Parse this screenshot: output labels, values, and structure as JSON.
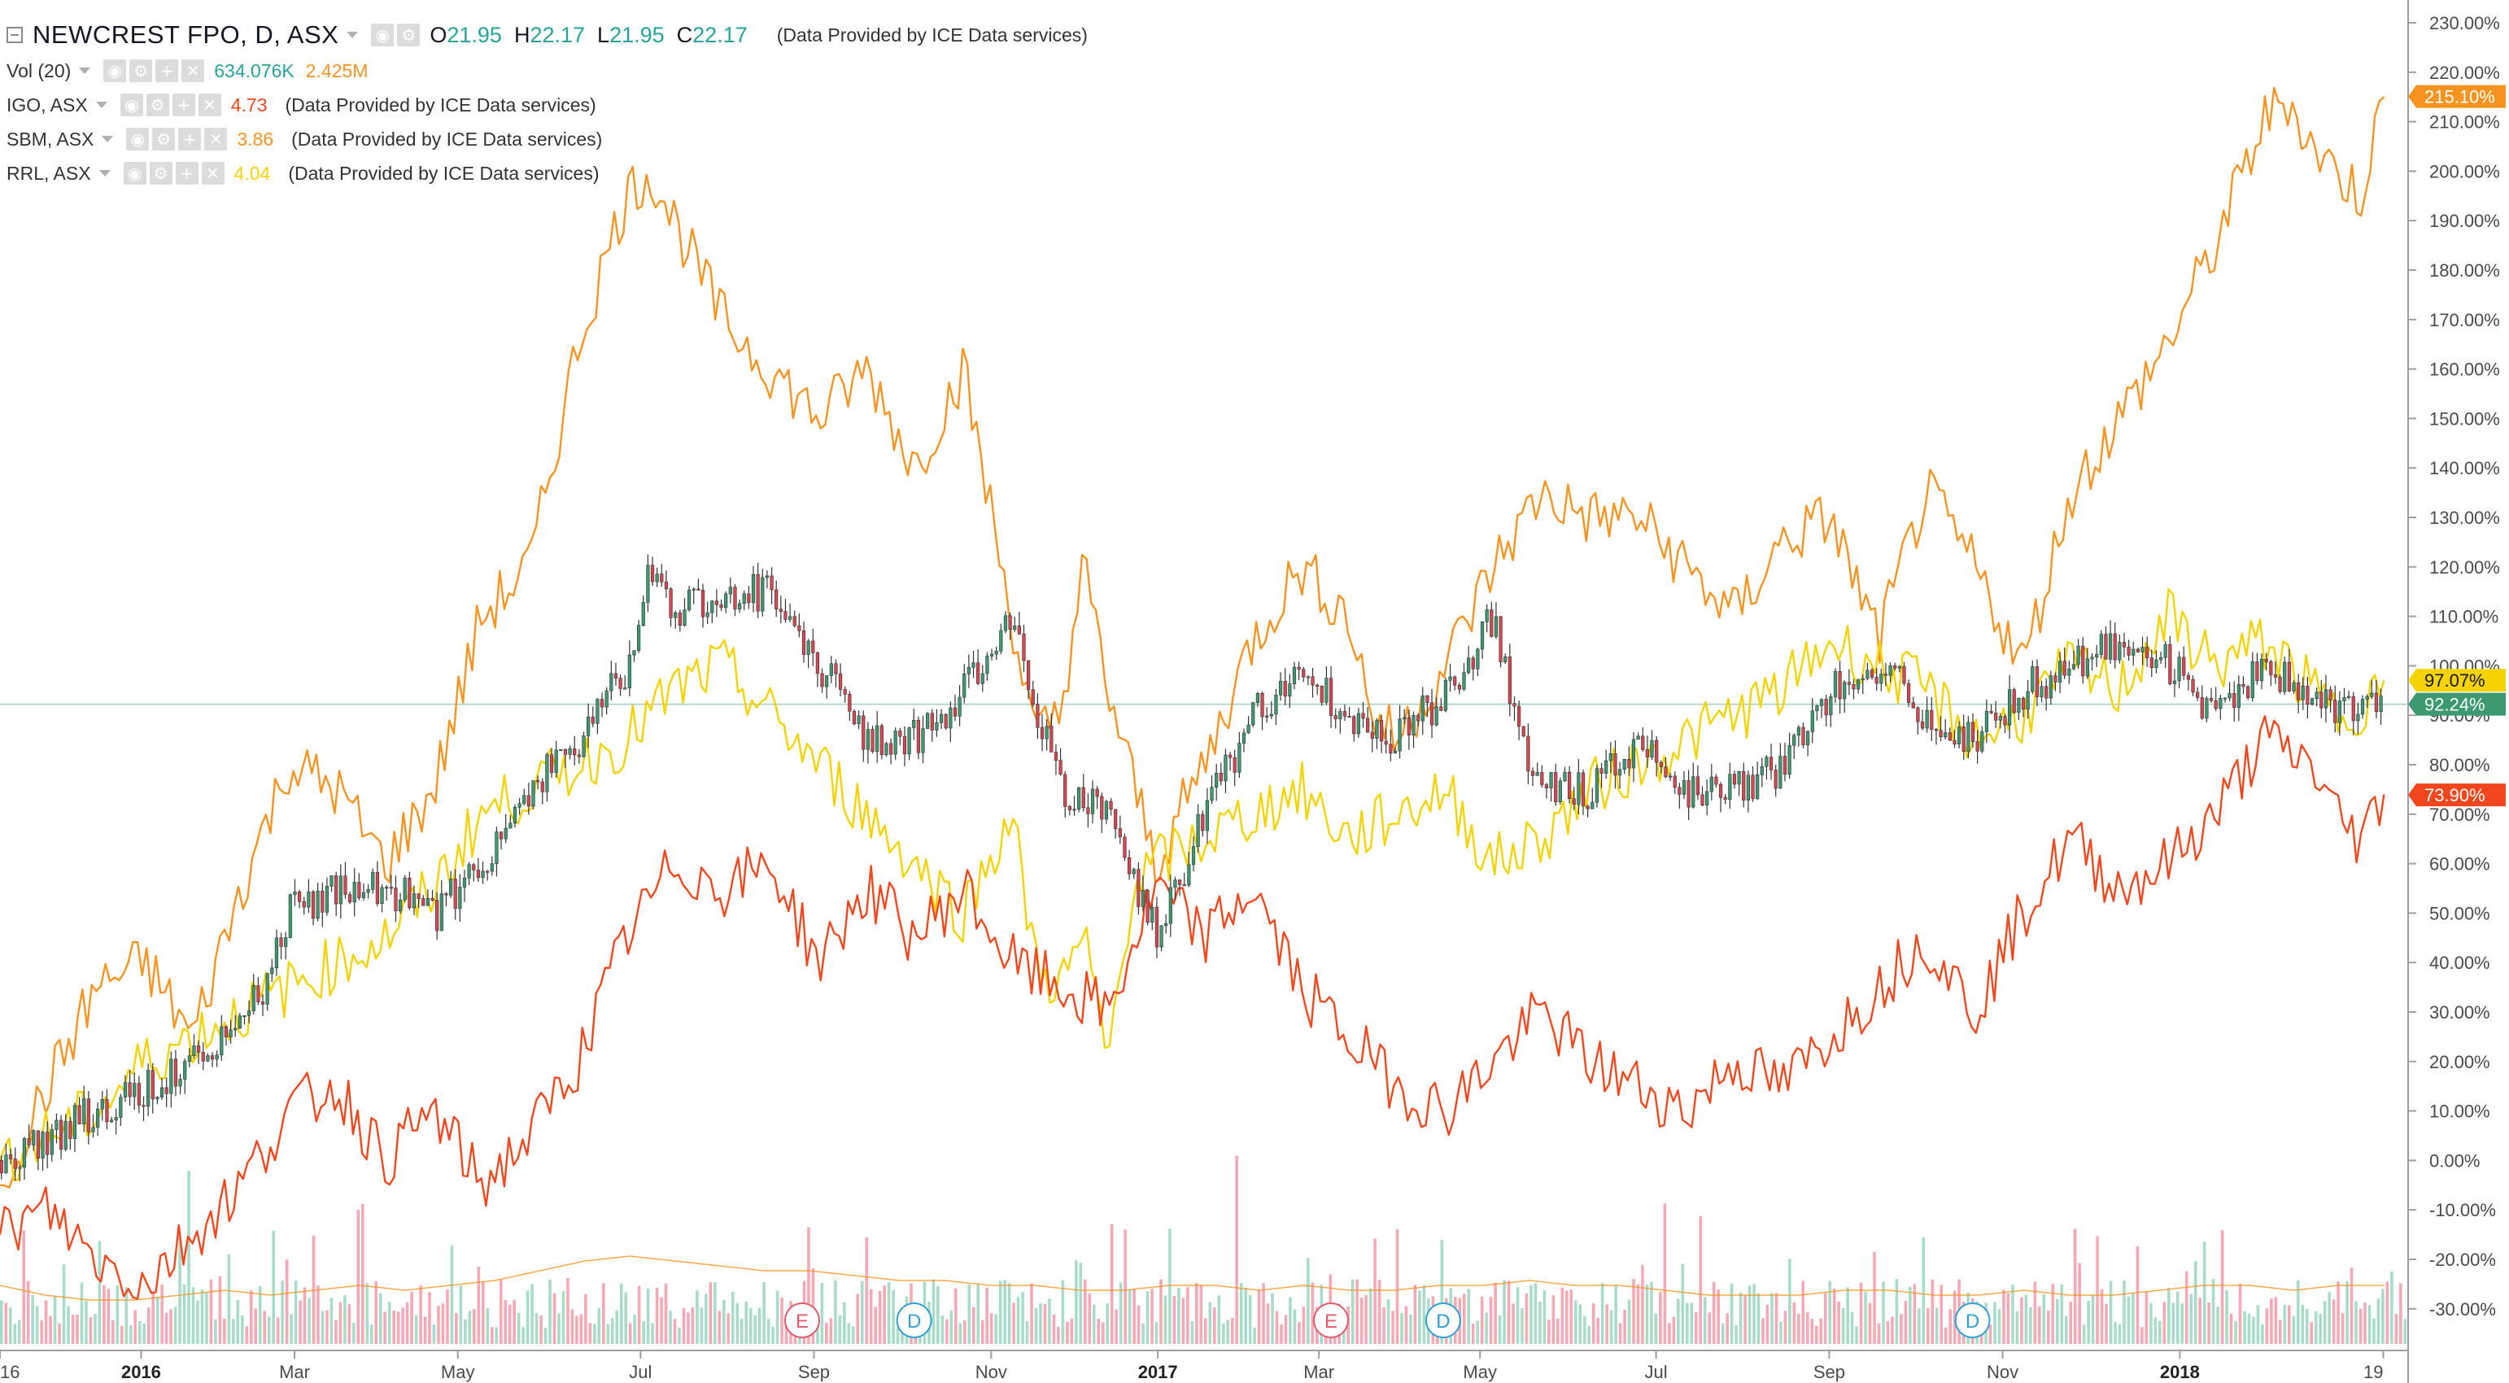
{
  "header": {
    "symbol": "NEWCREST FPO, D, ASX",
    "ohlc": {
      "o_label": "O",
      "o": "21.95",
      "h_label": "H",
      "h": "22.17",
      "l_label": "L",
      "l": "21.95",
      "c_label": "C",
      "c": "22.17"
    },
    "provider_note": "(Data Provided by ICE Data services)"
  },
  "legend": {
    "volume": {
      "label": "Vol (20)",
      "value": "634.076K",
      "ma_value": "2.425M",
      "value_color": "#26a69a",
      "ma_color": "#f7931e"
    },
    "compare": [
      {
        "label": "IGO, ASX",
        "value": "4.73",
        "color": "#f2471c",
        "note": "(Data Provided by ICE Data services)"
      },
      {
        "label": "SBM, ASX",
        "value": "3.86",
        "color": "#f7931e",
        "note": "(Data Provided by ICE Data services)"
      },
      {
        "label": "RRL, ASX",
        "value": "4.04",
        "color": "#f5d300",
        "note": "(Data Provided by ICE Data services)"
      }
    ]
  },
  "price_tags": [
    {
      "text": "215.10%",
      "color": "#f7931e",
      "value": 215.1
    },
    {
      "text": "97.07%",
      "color": "#f5d300",
      "value": 97.07,
      "text_color": "#131722"
    },
    {
      "text": "92.24%",
      "color": "#3d9970",
      "value": 92.24
    },
    {
      "text": "73.90%",
      "color": "#f2471c",
      "value": 73.9
    }
  ],
  "markers": [
    {
      "letter": "E",
      "color": "#e05a6b",
      "x_frac": 0.3331
    },
    {
      "letter": "D",
      "color": "#2e9fd6",
      "x_frac": 0.3796
    },
    {
      "letter": "E",
      "color": "#e05a6b",
      "x_frac": 0.5527
    },
    {
      "letter": "D",
      "color": "#2e9fd6",
      "x_frac": 0.5993
    },
    {
      "letter": "D",
      "color": "#2e9fd6",
      "x_frac": 0.8191
    }
  ],
  "chart_data": {
    "type": "line",
    "title": "NEWCREST FPO, D, ASX",
    "xlabel": "",
    "ylabel": "",
    "y_unit": "%",
    "ylim": [
      -35,
      235
    ],
    "y_ticks": [
      "230.00%",
      "220.00%",
      "210.00%",
      "200.00%",
      "190.00%",
      "180.00%",
      "170.00%",
      "160.00%",
      "150.00%",
      "140.00%",
      "130.00%",
      "120.00%",
      "110.00%",
      "100.00%",
      "90.00%",
      "80.00%",
      "70.00%",
      "60.00%",
      "50.00%",
      "40.00%",
      "30.00%",
      "20.00%",
      "10.00%",
      "0.00%",
      "-10.00%",
      "-20.00%",
      "-30.00%"
    ],
    "x_ticks": [
      "16",
      "2016",
      "Mar",
      "May",
      "Jul",
      "Sep",
      "Nov",
      "2017",
      "Mar",
      "May",
      "Jul",
      "Sep",
      "Nov",
      "2018",
      "19"
    ],
    "x_tick_pos": [
      0.0,
      0.0586,
      0.1223,
      0.1901,
      0.266,
      0.338,
      0.4116,
      0.4808,
      0.5477,
      0.6146,
      0.6877,
      0.7596,
      0.8316,
      0.9052,
      0.9897
    ],
    "bold_ticks": [
      "2016",
      "2017",
      "2018"
    ],
    "baseline_pct": 92.24,
    "series": [
      {
        "name": "SBM, ASX",
        "color": "#f7931e",
        "x": [
          0,
          0.02,
          0.04,
          0.06,
          0.08,
          0.1,
          0.12,
          0.14,
          0.16,
          0.18,
          0.2,
          0.22,
          0.24,
          0.26,
          0.27,
          0.28,
          0.3,
          0.32,
          0.34,
          0.36,
          0.38,
          0.39,
          0.4,
          0.42,
          0.43,
          0.44,
          0.45,
          0.46,
          0.48,
          0.5,
          0.52,
          0.54,
          0.56,
          0.57,
          0.58,
          0.6,
          0.62,
          0.64,
          0.66,
          0.68,
          0.7,
          0.72,
          0.74,
          0.76,
          0.78,
          0.8,
          0.82,
          0.84,
          0.86,
          0.88,
          0.9,
          0.92,
          0.94,
          0.95,
          0.96,
          0.97,
          0.98,
          0.99
        ],
        "values": [
          -5,
          15,
          35,
          40,
          25,
          55,
          80,
          75,
          60,
          75,
          110,
          120,
          165,
          195,
          200,
          190,
          170,
          160,
          150,
          160,
          140,
          150,
          160,
          110,
          85,
          90,
          120,
          95,
          60,
          80,
          105,
          120,
          110,
          90,
          85,
          100,
          120,
          135,
          130,
          130,
          120,
          110,
          125,
          130,
          105,
          135,
          120,
          100,
          135,
          150,
          165,
          185,
          210,
          215,
          205,
          200,
          195,
          215
        ]
      },
      {
        "name": "RRL, ASX",
        "color": "#f5d300",
        "x": [
          0,
          0.02,
          0.04,
          0.06,
          0.08,
          0.1,
          0.12,
          0.14,
          0.16,
          0.18,
          0.2,
          0.22,
          0.24,
          0.26,
          0.28,
          0.3,
          0.32,
          0.34,
          0.36,
          0.38,
          0.4,
          0.42,
          0.43,
          0.44,
          0.45,
          0.46,
          0.47,
          0.48,
          0.5,
          0.52,
          0.54,
          0.56,
          0.58,
          0.6,
          0.62,
          0.64,
          0.66,
          0.68,
          0.7,
          0.72,
          0.74,
          0.76,
          0.78,
          0.8,
          0.82,
          0.84,
          0.86,
          0.88,
          0.9,
          0.92,
          0.94,
          0.96,
          0.97,
          0.98,
          0.99
        ],
        "values": [
          0,
          5,
          10,
          20,
          25,
          30,
          35,
          40,
          45,
          55,
          70,
          75,
          80,
          85,
          95,
          100,
          90,
          80,
          70,
          60,
          50,
          70,
          40,
          35,
          45,
          20,
          55,
          60,
          65,
          70,
          75,
          65,
          70,
          75,
          60,
          65,
          75,
          80,
          85,
          90,
          95,
          105,
          100,
          95,
          85,
          90,
          100,
          95,
          110,
          100,
          105,
          95,
          90,
          92,
          97
        ]
      },
      {
        "name": "IGO, ASX",
        "color": "#f2471c",
        "x": [
          0,
          0.02,
          0.04,
          0.06,
          0.08,
          0.1,
          0.12,
          0.14,
          0.16,
          0.18,
          0.2,
          0.22,
          0.24,
          0.26,
          0.28,
          0.3,
          0.32,
          0.34,
          0.36,
          0.38,
          0.4,
          0.42,
          0.44,
          0.46,
          0.48,
          0.5,
          0.52,
          0.54,
          0.56,
          0.58,
          0.6,
          0.62,
          0.64,
          0.66,
          0.68,
          0.7,
          0.72,
          0.74,
          0.76,
          0.78,
          0.8,
          0.82,
          0.84,
          0.86,
          0.88,
          0.9,
          0.92,
          0.94,
          0.96,
          0.97,
          0.98,
          0.99
        ],
        "values": [
          -15,
          -10,
          -20,
          -25,
          -15,
          -5,
          10,
          15,
          0,
          10,
          -5,
          5,
          20,
          45,
          60,
          55,
          60,
          40,
          55,
          45,
          55,
          40,
          35,
          30,
          55,
          45,
          55,
          35,
          25,
          15,
          10,
          20,
          30,
          20,
          15,
          10,
          20,
          15,
          25,
          35,
          45,
          30,
          50,
          65,
          55,
          60,
          70,
          85,
          80,
          70,
          65,
          74
        ]
      },
      {
        "name": "NEWCREST FPO",
        "color": "#3d9970",
        "x": [
          0,
          0.02,
          0.04,
          0.06,
          0.08,
          0.1,
          0.11,
          0.12,
          0.14,
          0.16,
          0.18,
          0.2,
          0.22,
          0.24,
          0.26,
          0.27,
          0.28,
          0.3,
          0.32,
          0.34,
          0.36,
          0.38,
          0.4,
          0.42,
          0.43,
          0.44,
          0.46,
          0.48,
          0.5,
          0.52,
          0.54,
          0.56,
          0.58,
          0.6,
          0.62,
          0.63,
          0.64,
          0.66,
          0.68,
          0.7,
          0.72,
          0.74,
          0.76,
          0.78,
          0.8,
          0.82,
          0.84,
          0.86,
          0.88,
          0.9,
          0.92,
          0.94,
          0.96,
          0.97,
          0.98,
          0.99
        ],
        "values": [
          0,
          5,
          10,
          15,
          20,
          30,
          35,
          50,
          55,
          55,
          50,
          60,
          75,
          85,
          100,
          120,
          110,
          115,
          115,
          100,
          85,
          85,
          95,
          110,
          90,
          75,
          70,
          45,
          70,
          90,
          100,
          90,
          85,
          95,
          110,
          85,
          75,
          75,
          85,
          75,
          75,
          80,
          95,
          100,
          90,
          85,
          95,
          100,
          105,
          100,
          90,
          100,
          95,
          92,
          90,
          92.24
        ]
      }
    ],
    "volume": {
      "ylim": [
        0,
        40
      ],
      "up_color": "#a8dcc8",
      "down_color": "#f5a9b4",
      "ma_color": "#f7931e",
      "ma_values": [
        12,
        10,
        9,
        9,
        10,
        11,
        10,
        11,
        12,
        11,
        12,
        13,
        15,
        17,
        18,
        17,
        16,
        15,
        15,
        14,
        13,
        13,
        12,
        12,
        11,
        11,
        12,
        12,
        11,
        12,
        11,
        11,
        12,
        12,
        13,
        12,
        12,
        11,
        10,
        10,
        10,
        11,
        11,
        10,
        10,
        11,
        10,
        10,
        11,
        12,
        12,
        11,
        12,
        12
      ],
      "note": "daily volume bars; heights in relative units"
    }
  }
}
